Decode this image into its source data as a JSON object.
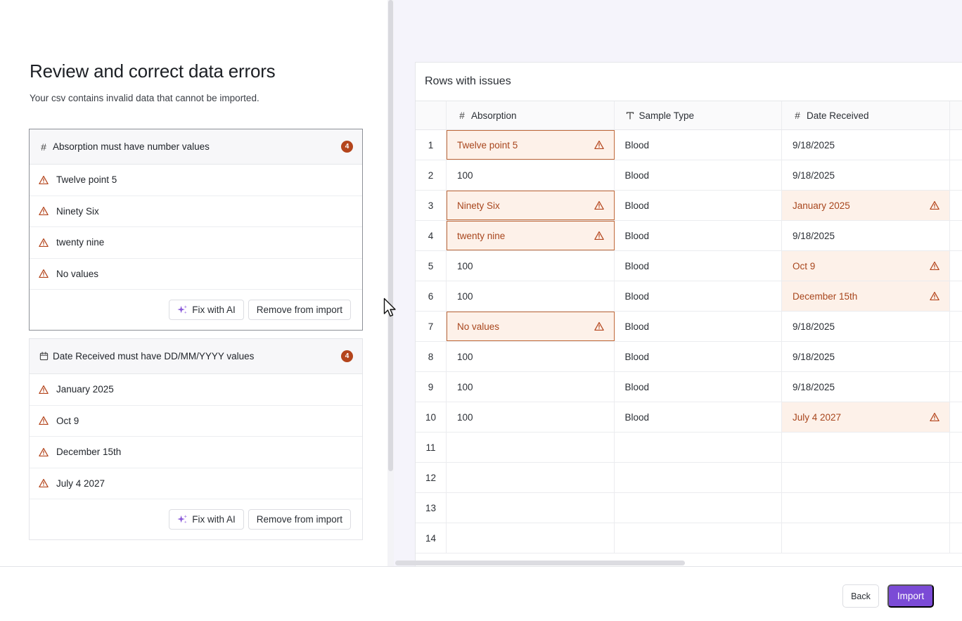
{
  "page": {
    "title": "Review and correct data errors",
    "subtitle": "Your csv contains invalid data that cannot be imported."
  },
  "error_groups": [
    {
      "header": "Absorption must have number values",
      "icon": "hash-icon",
      "count": "4",
      "values": [
        "Twelve point 5",
        "Ninety Six",
        "twenty nine",
        "No values"
      ],
      "fix_label": "Fix with AI",
      "remove_label": "Remove from import"
    },
    {
      "header": "Date Received must have DD/MM/YYYY values",
      "icon": "calendar-icon",
      "count": "4",
      "values": [
        "January 2025",
        "Oct 9",
        "December 15th",
        "July 4 2027"
      ],
      "fix_label": "Fix with AI",
      "remove_label": "Remove from import"
    }
  ],
  "table": {
    "title": "Rows with issues",
    "columns": [
      {
        "label": "Absorption",
        "icon": "hash-icon"
      },
      {
        "label": "Sample Type",
        "icon": "text-type-icon"
      },
      {
        "label": "Date Received",
        "icon": "hash-icon"
      }
    ],
    "rows": [
      {
        "n": "1",
        "absorption": "Twelve point 5",
        "sample": "Blood",
        "date": "9/18/2025"
      },
      {
        "n": "2",
        "absorption": "100",
        "sample": "Blood",
        "date": "9/18/2025"
      },
      {
        "n": "3",
        "absorption": "Ninety Six",
        "sample": "Blood",
        "date": "January 2025"
      },
      {
        "n": "4",
        "absorption": "twenty nine",
        "sample": "Blood",
        "date": "9/18/2025"
      },
      {
        "n": "5",
        "absorption": "100",
        "sample": "Blood",
        "date": "Oct 9"
      },
      {
        "n": "6",
        "absorption": "100",
        "sample": "Blood",
        "date": "December 15th"
      },
      {
        "n": "7",
        "absorption": "No values",
        "sample": "Blood",
        "date": "9/18/2025"
      },
      {
        "n": "8",
        "absorption": "100",
        "sample": "Blood",
        "date": "9/18/2025"
      },
      {
        "n": "9",
        "absorption": "100",
        "sample": "Blood",
        "date": "9/18/2025"
      },
      {
        "n": "10",
        "absorption": "100",
        "sample": "Blood",
        "date": "July 4 2027"
      },
      {
        "n": "11",
        "absorption": "",
        "sample": "",
        "date": ""
      },
      {
        "n": "12",
        "absorption": "",
        "sample": "",
        "date": ""
      },
      {
        "n": "13",
        "absorption": "",
        "sample": "",
        "date": ""
      },
      {
        "n": "14",
        "absorption": "",
        "sample": "",
        "date": ""
      }
    ],
    "absorption_error_rows": [
      "1",
      "3",
      "4",
      "7"
    ],
    "date_error_rows": [
      "3",
      "5",
      "6",
      "10"
    ]
  },
  "footer": {
    "back_label": "Back",
    "import_label": "Import"
  },
  "colors": {
    "accent": "#7b4bd6",
    "error_text": "#a8461d",
    "error_bg": "#fdf1e9",
    "badge": "#b4451c"
  }
}
